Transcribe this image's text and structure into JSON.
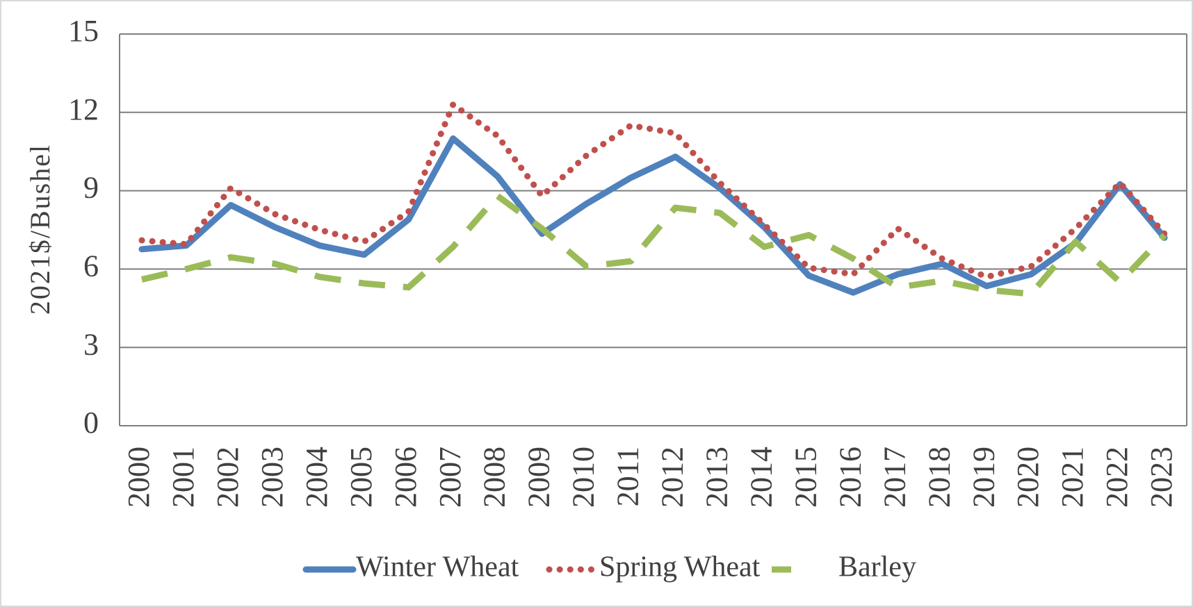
{
  "chart_data": {
    "type": "line",
    "categories": [
      "2000",
      "2001",
      "2002",
      "2003",
      "2004",
      "2005",
      "2006",
      "2007",
      "2008",
      "2009",
      "2010",
      "2011",
      "2012",
      "2013",
      "2014",
      "2015",
      "2016",
      "2017",
      "2018",
      "2019",
      "2020",
      "2021",
      "2022",
      "2023"
    ],
    "y_label": "2021$/Bushel",
    "ylim": [
      0,
      15
    ],
    "yticks": [
      0,
      3,
      6,
      9,
      12,
      15
    ],
    "grid": true,
    "legend": "bottom",
    "series": [
      {
        "name": "Winter Wheat",
        "color": "#4f81bd",
        "style": "solid",
        "values": [
          6.76,
          6.9,
          8.45,
          7.6,
          6.9,
          6.55,
          7.9,
          11.0,
          9.55,
          7.35,
          8.5,
          9.5,
          10.3,
          9.1,
          7.6,
          5.75,
          5.1,
          5.8,
          6.2,
          5.35,
          5.8,
          7.0,
          9.25,
          7.2
        ]
      },
      {
        "name": "Spring Wheat",
        "color": "#c0504d",
        "style": "dotted",
        "values": [
          7.1,
          6.95,
          9.1,
          8.1,
          7.5,
          7.05,
          8.2,
          12.3,
          11.1,
          8.8,
          10.35,
          11.5,
          11.2,
          9.3,
          7.7,
          6.05,
          5.8,
          7.55,
          6.4,
          5.7,
          6.1,
          7.55,
          9.3,
          7.35
        ]
      },
      {
        "name": "Barley",
        "color": "#9bbb59",
        "style": "dashed",
        "values": [
          5.6,
          6.0,
          6.45,
          6.2,
          5.7,
          5.45,
          5.3,
          6.85,
          8.8,
          7.55,
          6.1,
          6.3,
          8.35,
          8.15,
          6.85,
          7.3,
          6.4,
          5.3,
          5.55,
          5.2,
          5.05,
          7.05,
          5.5,
          7.3
        ]
      }
    ]
  }
}
